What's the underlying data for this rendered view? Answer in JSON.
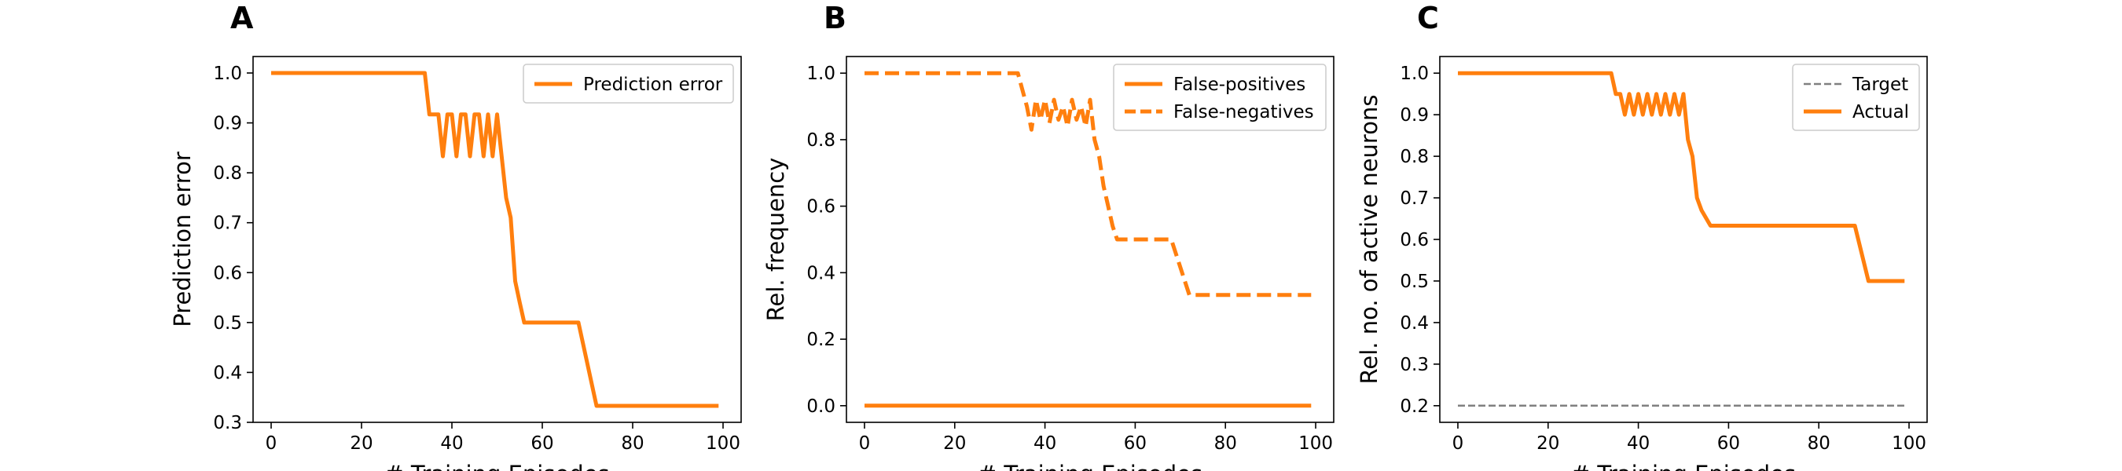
{
  "chart_data": [
    {
      "type": "line",
      "panel": "A",
      "xlabel": "# Training Episodes",
      "ylabel": "Prediction error",
      "xlim": [
        -4,
        104
      ],
      "ylim": [
        0.3,
        1.033
      ],
      "xticks": [
        0,
        20,
        40,
        60,
        80,
        100
      ],
      "yticks": [
        0.3,
        0.4,
        0.5,
        0.6,
        0.7,
        0.8,
        0.9,
        1.0
      ],
      "ytick_labels": [
        "0.3",
        "0.4",
        "0.5",
        "0.6",
        "0.7",
        "0.8",
        "0.9",
        "1.0"
      ],
      "legend_position": "top-right",
      "grid": false,
      "series": [
        {
          "name": "Prediction error",
          "color": "#ff7f0e",
          "style": "solid",
          "x": [
            0,
            34,
            35,
            37,
            38,
            39,
            40,
            41,
            42,
            43,
            44,
            45,
            46,
            47,
            48,
            49,
            50,
            51,
            52,
            53,
            54,
            55,
            56,
            68,
            72,
            99
          ],
          "y": [
            1.0,
            1.0,
            0.917,
            0.917,
            0.833,
            0.917,
            0.917,
            0.833,
            0.917,
            0.917,
            0.833,
            0.917,
            0.917,
            0.833,
            0.917,
            0.833,
            0.917,
            0.833,
            0.75,
            0.71,
            0.583,
            0.54,
            0.5,
            0.5,
            0.333,
            0.333
          ]
        }
      ]
    },
    {
      "type": "line",
      "panel": "B",
      "xlabel": "# Training Episodes",
      "ylabel": "Rel. frequency",
      "xlim": [
        -4,
        104
      ],
      "ylim": [
        -0.05,
        1.05
      ],
      "xticks": [
        0,
        20,
        40,
        60,
        80,
        100
      ],
      "yticks": [
        0.0,
        0.2,
        0.4,
        0.6,
        0.8,
        1.0
      ],
      "ytick_labels": [
        "0.0",
        "0.2",
        "0.4",
        "0.6",
        "0.8",
        "1.0"
      ],
      "legend_position": "top-right",
      "grid": false,
      "series": [
        {
          "name": "False-positives",
          "color": "#ff7f0e",
          "style": "solid",
          "x": [
            0,
            99
          ],
          "y": [
            0.0,
            0.0
          ]
        },
        {
          "name": "False-negatives",
          "color": "#ff7f0e",
          "style": "dashed",
          "x": [
            0,
            34,
            36,
            37,
            38,
            39,
            40,
            41,
            42,
            43,
            44,
            45,
            46,
            47,
            48,
            49,
            50,
            51,
            52,
            53,
            54,
            55,
            56,
            68,
            72,
            99
          ],
          "y": [
            1.0,
            1.0,
            0.9,
            0.83,
            0.92,
            0.86,
            0.92,
            0.85,
            0.92,
            0.86,
            0.9,
            0.84,
            0.92,
            0.86,
            0.9,
            0.84,
            0.92,
            0.8,
            0.75,
            0.66,
            0.6,
            0.54,
            0.5,
            0.5,
            0.333,
            0.333
          ]
        }
      ]
    },
    {
      "type": "line",
      "panel": "C",
      "xlabel": "# Training Episodes",
      "ylabel": "Rel. no. of active neurons",
      "xlim": [
        -4,
        104
      ],
      "ylim": [
        0.16,
        1.04
      ],
      "xticks": [
        0,
        20,
        40,
        60,
        80,
        100
      ],
      "yticks": [
        0.2,
        0.3,
        0.4,
        0.5,
        0.6,
        0.7,
        0.8,
        0.9,
        1.0
      ],
      "ytick_labels": [
        "0.2",
        "0.3",
        "0.4",
        "0.5",
        "0.6",
        "0.7",
        "0.8",
        "0.9",
        "1.0"
      ],
      "legend_position": "top-right",
      "grid": false,
      "series": [
        {
          "name": "Target",
          "color": "#808080",
          "style": "dashed-thin",
          "x": [
            0,
            99
          ],
          "y": [
            0.2,
            0.2
          ]
        },
        {
          "name": "Actual",
          "color": "#ff7f0e",
          "style": "solid",
          "x": [
            0,
            34,
            35,
            36,
            37,
            38,
            39,
            40,
            41,
            42,
            43,
            44,
            45,
            46,
            47,
            48,
            49,
            50,
            51,
            52,
            53,
            54,
            56,
            88,
            91,
            99
          ],
          "y": [
            1.0,
            1.0,
            0.95,
            0.95,
            0.9,
            0.95,
            0.9,
            0.95,
            0.9,
            0.95,
            0.9,
            0.95,
            0.9,
            0.95,
            0.9,
            0.95,
            0.9,
            0.95,
            0.84,
            0.8,
            0.7,
            0.67,
            0.633,
            0.633,
            0.5,
            0.5
          ]
        }
      ]
    }
  ]
}
